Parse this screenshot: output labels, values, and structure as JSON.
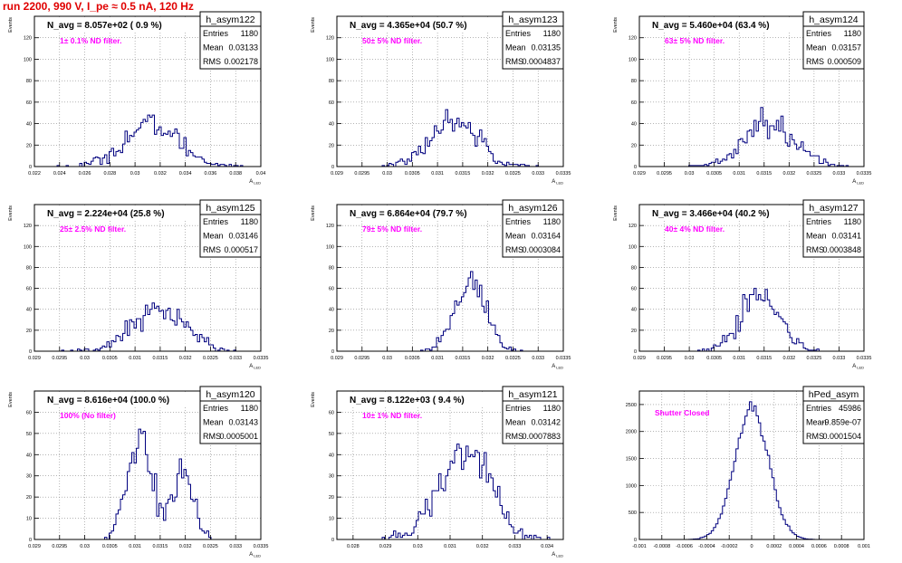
{
  "run_title": "run 2200,   990 V, I_pe ≈ 0.5 nA, 120 Hz",
  "colors": {
    "histogram": "#00007f",
    "annotation": "#ff00ff",
    "run_title": "#e00000",
    "grid": "#888888"
  },
  "stats_labels": {
    "entries": "Entries",
    "mean": "Mean",
    "rms": "RMS"
  },
  "chart_data": [
    {
      "type": "histogram",
      "name": "h_asym122",
      "title": "N_avg = 8.057e+02 ( 0.9 %)",
      "annotation": "1± 0.1% ND filter.",
      "stats": {
        "entries": "1180",
        "mean": "0.03133",
        "rms": "0.002178"
      },
      "ylabel": "Events",
      "xlabel": "A_LED",
      "grid": true,
      "xlim": [
        0.022,
        0.04
      ],
      "ylim": [
        0,
        140
      ],
      "x_ticks": [
        "0.022",
        "0.024",
        "0.026",
        "0.028",
        "0.03",
        "0.032",
        "0.034",
        "0.036",
        "0.038",
        "0.04"
      ],
      "y_ticks": [
        "0",
        "20",
        "40",
        "60",
        "80",
        "100",
        "120"
      ],
      "mean_value": 0.03133,
      "rms_value": 0.002178,
      "entries_value": 1180
    },
    {
      "type": "histogram",
      "name": "h_asym123",
      "title": "N_avg = 4.365e+04 (50.7 %)",
      "annotation": "50± 5% ND filter.",
      "stats": {
        "entries": "1180",
        "mean": "0.03135",
        "rms": "0.0004837"
      },
      "ylabel": "Events",
      "xlabel": "A_LED",
      "grid": true,
      "xlim": [
        0.029,
        0.0335
      ],
      "ylim": [
        0,
        140
      ],
      "x_ticks": [
        "0.029",
        "0.0295",
        "0.03",
        "0.0305",
        "0.031",
        "0.0315",
        "0.032",
        "0.0325",
        "0.033",
        "0.0335"
      ],
      "y_ticks": [
        "0",
        "20",
        "40",
        "60",
        "80",
        "100",
        "120"
      ],
      "mean_value": 0.03135,
      "rms_value": 0.0004837,
      "entries_value": 1180
    },
    {
      "type": "histogram",
      "name": "h_asym124",
      "title": "N_avg = 5.460e+04 (63.4 %)",
      "annotation": "63± 5% ND filter.",
      "stats": {
        "entries": "1180",
        "mean": "0.03157",
        "rms": "0.000509"
      },
      "ylabel": "Events",
      "xlabel": "A_LED",
      "grid": true,
      "xlim": [
        0.029,
        0.0335
      ],
      "ylim": [
        0,
        140
      ],
      "x_ticks": [
        "0.029",
        "0.0295",
        "0.03",
        "0.0305",
        "0.031",
        "0.0315",
        "0.032",
        "0.0325",
        "0.033",
        "0.0335"
      ],
      "y_ticks": [
        "0",
        "20",
        "40",
        "60",
        "80",
        "100",
        "120"
      ],
      "mean_value": 0.03157,
      "rms_value": 0.000509,
      "entries_value": 1180
    },
    {
      "type": "histogram",
      "name": "h_asym125",
      "title": "N_avg = 2.224e+04 (25.8 %)",
      "annotation": "25± 2.5% ND filter.",
      "stats": {
        "entries": "1180",
        "mean": "0.03146",
        "rms": "0.000517"
      },
      "ylabel": "Events",
      "xlabel": "A_LED",
      "grid": true,
      "xlim": [
        0.029,
        0.0335
      ],
      "ylim": [
        0,
        140
      ],
      "x_ticks": [
        "0.029",
        "0.0295",
        "0.03",
        "0.0305",
        "0.031",
        "0.0315",
        "0.032",
        "0.0325",
        "0.033",
        "0.0335"
      ],
      "y_ticks": [
        "0",
        "20",
        "40",
        "60",
        "80",
        "100",
        "120"
      ],
      "mean_value": 0.03146,
      "rms_value": 0.000517,
      "entries_value": 1180
    },
    {
      "type": "histogram",
      "name": "h_asym126",
      "title": "N_avg = 6.864e+04 (79.7 %)",
      "annotation": "79± 5% ND filter.",
      "stats": {
        "entries": "1180",
        "mean": "0.03164",
        "rms": "0.0003084"
      },
      "ylabel": "Events",
      "xlabel": "A_LED",
      "grid": true,
      "xlim": [
        0.029,
        0.0335
      ],
      "ylim": [
        0,
        140
      ],
      "x_ticks": [
        "0.029",
        "0.0295",
        "0.03",
        "0.0305",
        "0.031",
        "0.0315",
        "0.032",
        "0.0325",
        "0.033",
        "0.0335"
      ],
      "y_ticks": [
        "0",
        "20",
        "40",
        "60",
        "80",
        "100",
        "120"
      ],
      "mean_value": 0.03164,
      "rms_value": 0.0003084,
      "entries_value": 1180
    },
    {
      "type": "histogram",
      "name": "h_asym127",
      "title": "N_avg = 3.466e+04 (40.2 %)",
      "annotation": "40± 4% ND filter.",
      "stats": {
        "entries": "1180",
        "mean": "0.03141",
        "rms": "0.0003848"
      },
      "ylabel": "Events",
      "xlabel": "A_LED",
      "grid": true,
      "xlim": [
        0.029,
        0.0335
      ],
      "ylim": [
        0,
        140
      ],
      "x_ticks": [
        "0.029",
        "0.0295",
        "0.03",
        "0.0305",
        "0.031",
        "0.0315",
        "0.032",
        "0.0325",
        "0.033",
        "0.0335"
      ],
      "y_ticks": [
        "0",
        "20",
        "40",
        "60",
        "80",
        "100",
        "120"
      ],
      "mean_value": 0.03141,
      "rms_value": 0.0003848,
      "entries_value": 1180
    },
    {
      "type": "histogram",
      "name": "h_asym120",
      "title": "N_avg = 8.616e+04 (100.0 %)",
      "annotation": "100% (No filter)",
      "stats": {
        "entries": "1180",
        "mean": "0.03143",
        "rms": "0.0005001"
      },
      "ylabel": "Events",
      "xlabel": "A_LED",
      "grid": true,
      "xlim": [
        0.029,
        0.0335
      ],
      "ylim": [
        0,
        70
      ],
      "x_ticks": [
        "0.029",
        "0.0295",
        "0.03",
        "0.0305",
        "0.031",
        "0.0315",
        "0.032",
        "0.0325",
        "0.033",
        "0.0335"
      ],
      "y_ticks": [
        "0",
        "10",
        "20",
        "30",
        "40",
        "50",
        "60"
      ],
      "mean_value": 0.03143,
      "rms_value": 0.0005001,
      "entries_value": 1180
    },
    {
      "type": "histogram",
      "name": "h_asym121",
      "title": "N_avg = 8.122e+03 ( 9.4 %)",
      "annotation": "10± 1% ND filter.",
      "stats": {
        "entries": "1180",
        "mean": "0.03142",
        "rms": "0.0007883"
      },
      "ylabel": "Events",
      "xlabel": "A_LED",
      "grid": true,
      "xlim": [
        0.0275,
        0.0345
      ],
      "ylim": [
        0,
        70
      ],
      "x_ticks": [
        "0.028",
        "0.029",
        "0.03",
        "0.031",
        "0.032",
        "0.033",
        "0.034"
      ],
      "y_ticks": [
        "0",
        "10",
        "20",
        "30",
        "40",
        "50",
        "60"
      ],
      "mean_value": 0.03142,
      "rms_value": 0.0007883,
      "entries_value": 1180
    },
    {
      "type": "histogram",
      "name": "hPed_asym",
      "title": "",
      "annotation": "Shutter Closed",
      "stats": {
        "entries": "45986",
        "mean": "-9.859e-07",
        "rms": "0.0001504"
      },
      "ylabel": "",
      "xlabel": "",
      "grid": true,
      "xlim": [
        -0.001,
        0.001
      ],
      "ylim": [
        0,
        2750
      ],
      "x_ticks": [
        "-0.001",
        "-0.0008",
        "-0.0006",
        "-0.0004",
        "-0.0002",
        "0",
        "0.0002",
        "0.0004",
        "0.0006",
        "0.0008",
        "0.001"
      ],
      "y_ticks": [
        "0",
        "500",
        "1000",
        "1500",
        "2000",
        "2500"
      ],
      "mean_value": -9.86e-07,
      "rms_value": 0.0001504,
      "entries_value": 45986
    }
  ]
}
